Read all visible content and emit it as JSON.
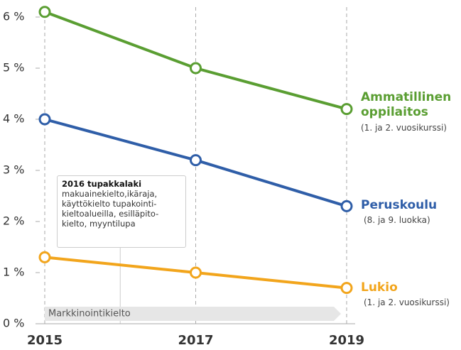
{
  "chart_data": {
    "type": "line",
    "categories": [
      "2015",
      "2017",
      "2019"
    ],
    "series": [
      {
        "name": "Ammatillinen oppilaitos",
        "sublabel": "(1. ja 2. vuosikurssi)",
        "color": "#5a9e32",
        "values": [
          6.1,
          5.0,
          4.2
        ]
      },
      {
        "name": "Peruskoulu",
        "sublabel": "(8. ja 9. luokka)",
        "color": "#2f5ea8",
        "values": [
          4.0,
          3.2,
          2.3
        ]
      },
      {
        "name": "Lukio",
        "sublabel": "(1. ja 2. vuosikurssi)",
        "color": "#f2a51c",
        "values": [
          1.3,
          1.0,
          0.7
        ]
      }
    ],
    "ylim": [
      0,
      6.2
    ],
    "yticks": [
      {
        "value": 0,
        "label": "0 %"
      },
      {
        "value": 1,
        "label": "1 %"
      },
      {
        "value": 2,
        "label": "2 %"
      },
      {
        "value": 3,
        "label": "3 %"
      },
      {
        "value": 4,
        "label": "4 %"
      },
      {
        "value": 5,
        "label": "5 %"
      },
      {
        "value": 6,
        "label": "6 %"
      }
    ],
    "grid": false,
    "annotation": {
      "title": "2016 tupakkalaki",
      "lines": [
        "makuainekielto,ikäraja,",
        "käyttökielto tupakointi-",
        "kieltoalueilla, esilläpito-",
        "kielto, myyntilupa"
      ]
    },
    "band_label": "Markkinointikielto"
  }
}
